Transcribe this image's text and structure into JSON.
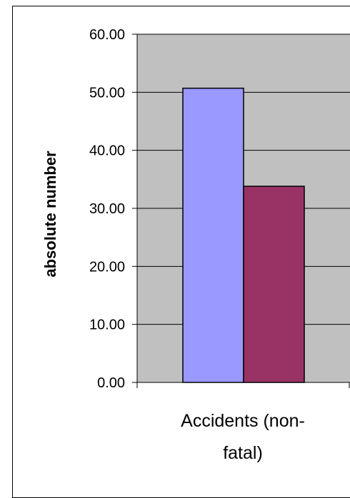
{
  "chart_data": {
    "type": "bar",
    "categories": [
      "Accidents (non-fatal)"
    ],
    "category_lines": [
      "Accidents (non-",
      "fatal)"
    ],
    "series": [
      {
        "color": "#9999ff",
        "values": [
          50.7
        ]
      },
      {
        "color": "#993366",
        "values": [
          33.8
        ]
      }
    ],
    "ylabel": "absolute number",
    "ylim": [
      0,
      60
    ],
    "yticks": [
      "0.00",
      "10.00",
      "20.00",
      "30.00",
      "40.00",
      "50.00",
      "60.00"
    ],
    "plot_background": "#c0c0c0",
    "grid": true
  }
}
